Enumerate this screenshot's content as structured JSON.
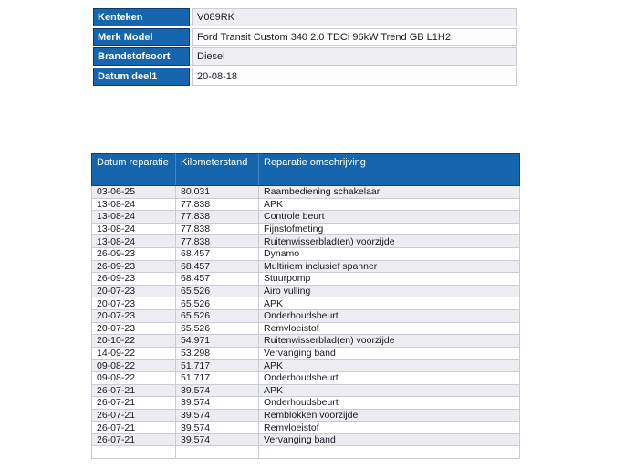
{
  "colors": {
    "header_blue": "#1565af",
    "header_border_dark": "#0d3a6b",
    "header_divider_blue": "#4584c2",
    "row_alt_grey": "#ededf1",
    "row_white": "#ffffff",
    "cell_border": "#c9ccd4",
    "text_dark": "#1b1c24",
    "text_light": "#ffffff"
  },
  "vehicle_info": {
    "rows": [
      {
        "label": "Kenteken",
        "value": "V089RK"
      },
      {
        "label": "Merk Model",
        "value": "Ford Transit Custom 340 2.0 TDCi 96kW Trend GB L1H2"
      },
      {
        "label": "Brandstofsoort",
        "value": "Diesel"
      },
      {
        "label": "Datum deel1",
        "value": "20-08-18"
      }
    ]
  },
  "repair_history": {
    "columns": [
      "Datum reparatie",
      "Kilometerstand",
      "Reparatie omschrijving"
    ],
    "rows": [
      [
        "03-06-25",
        "80.031",
        "Raambediening schakelaar"
      ],
      [
        "13-08-24",
        "77.838",
        "APK"
      ],
      [
        "13-08-24",
        "77.838",
        "Controle beurt"
      ],
      [
        "13-08-24",
        "77.838",
        "Fijnstofmeting"
      ],
      [
        "13-08-24",
        "77.838",
        "Ruitenwisserblad(en) voorzijde"
      ],
      [
        "26-09-23",
        "68.457",
        "Dynamo"
      ],
      [
        "26-09-23",
        "68.457",
        "Multiriem inclusief spanner"
      ],
      [
        "26-09-23",
        "68.457",
        "Stuurpomp"
      ],
      [
        "20-07-23",
        "65.526",
        "Airo vulling"
      ],
      [
        "20-07-23",
        "65.526",
        "APK"
      ],
      [
        "20-07-23",
        "65.526",
        "Onderhoudsbeurt"
      ],
      [
        "20-07-23",
        "65.526",
        "Remvloeistof"
      ],
      [
        "20-10-22",
        "54.971",
        "Ruitenwisserblad(en) voorzijde"
      ],
      [
        "14-09-22",
        "53.298",
        "Vervanging band"
      ],
      [
        "09-08-22",
        "51.717",
        "APK"
      ],
      [
        "09-08-22",
        "51.717",
        "Onderhoudsbeurt"
      ],
      [
        "26-07-21",
        "39.574",
        "APK"
      ],
      [
        "26-07-21",
        "39.574",
        "Onderhoudsbeurt"
      ],
      [
        "26-07-21",
        "39.574",
        "Remblokken voorzijde"
      ],
      [
        "26-07-21",
        "39.574",
        "Remvloeistof"
      ],
      [
        "26-07-21",
        "39.574",
        "Vervanging band"
      ]
    ]
  }
}
